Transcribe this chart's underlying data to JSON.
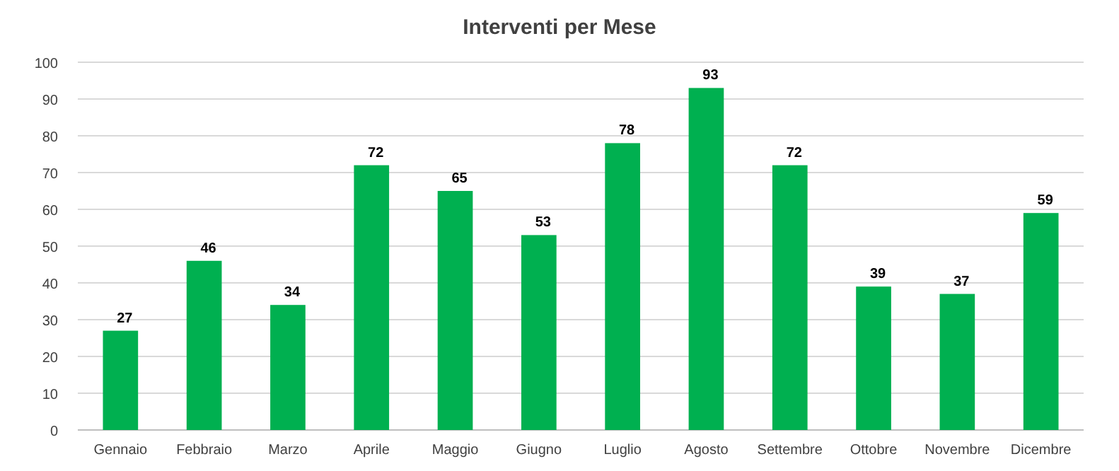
{
  "chart_data": {
    "type": "bar",
    "title": "Interventi per Mese",
    "categories": [
      "Gennaio",
      "Febbraio",
      "Marzo",
      "Aprile",
      "Maggio",
      "Giugno",
      "Luglio",
      "Agosto",
      "Settembre",
      "Ottobre",
      "Novembre",
      "Dicembre"
    ],
    "values": [
      27,
      46,
      34,
      72,
      65,
      53,
      78,
      93,
      72,
      39,
      37,
      59
    ],
    "color": "#00b050",
    "ylim": [
      0,
      100
    ],
    "yticks": [
      0,
      10,
      20,
      30,
      40,
      50,
      60,
      70,
      80,
      90,
      100
    ],
    "grid": "y",
    "data_labels": true
  }
}
